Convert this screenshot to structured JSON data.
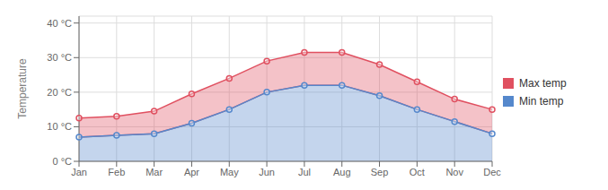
{
  "chart_data": {
    "type": "area",
    "categories": [
      "Jan",
      "Feb",
      "Mar",
      "Apr",
      "May",
      "Jun",
      "Jul",
      "Aug",
      "Sep",
      "Oct",
      "Nov",
      "Dec"
    ],
    "series": [
      {
        "name": "Max temp",
        "color": "#e05060",
        "values": [
          12.5,
          13.0,
          14.5,
          19.5,
          24.0,
          29.0,
          31.5,
          31.5,
          28.0,
          23.0,
          18.0,
          15.0
        ]
      },
      {
        "name": "Min temp",
        "color": "#5588cc",
        "values": [
          7.0,
          7.5,
          8.0,
          11.0,
          15.0,
          20.0,
          22.0,
          22.0,
          19.0,
          15.0,
          11.5,
          8.0
        ]
      }
    ],
    "ylabel": "Temperature",
    "ylim": [
      0,
      42
    ],
    "yticks": [
      {
        "value": 0,
        "label": "0 °C"
      },
      {
        "value": 10,
        "label": "10 °C"
      },
      {
        "value": 20,
        "label": "20 °C"
      },
      {
        "value": 30,
        "label": "30 °C"
      },
      {
        "value": 40,
        "label": "40 °C"
      }
    ],
    "grid": true,
    "legend": "right",
    "marker": "circle"
  }
}
